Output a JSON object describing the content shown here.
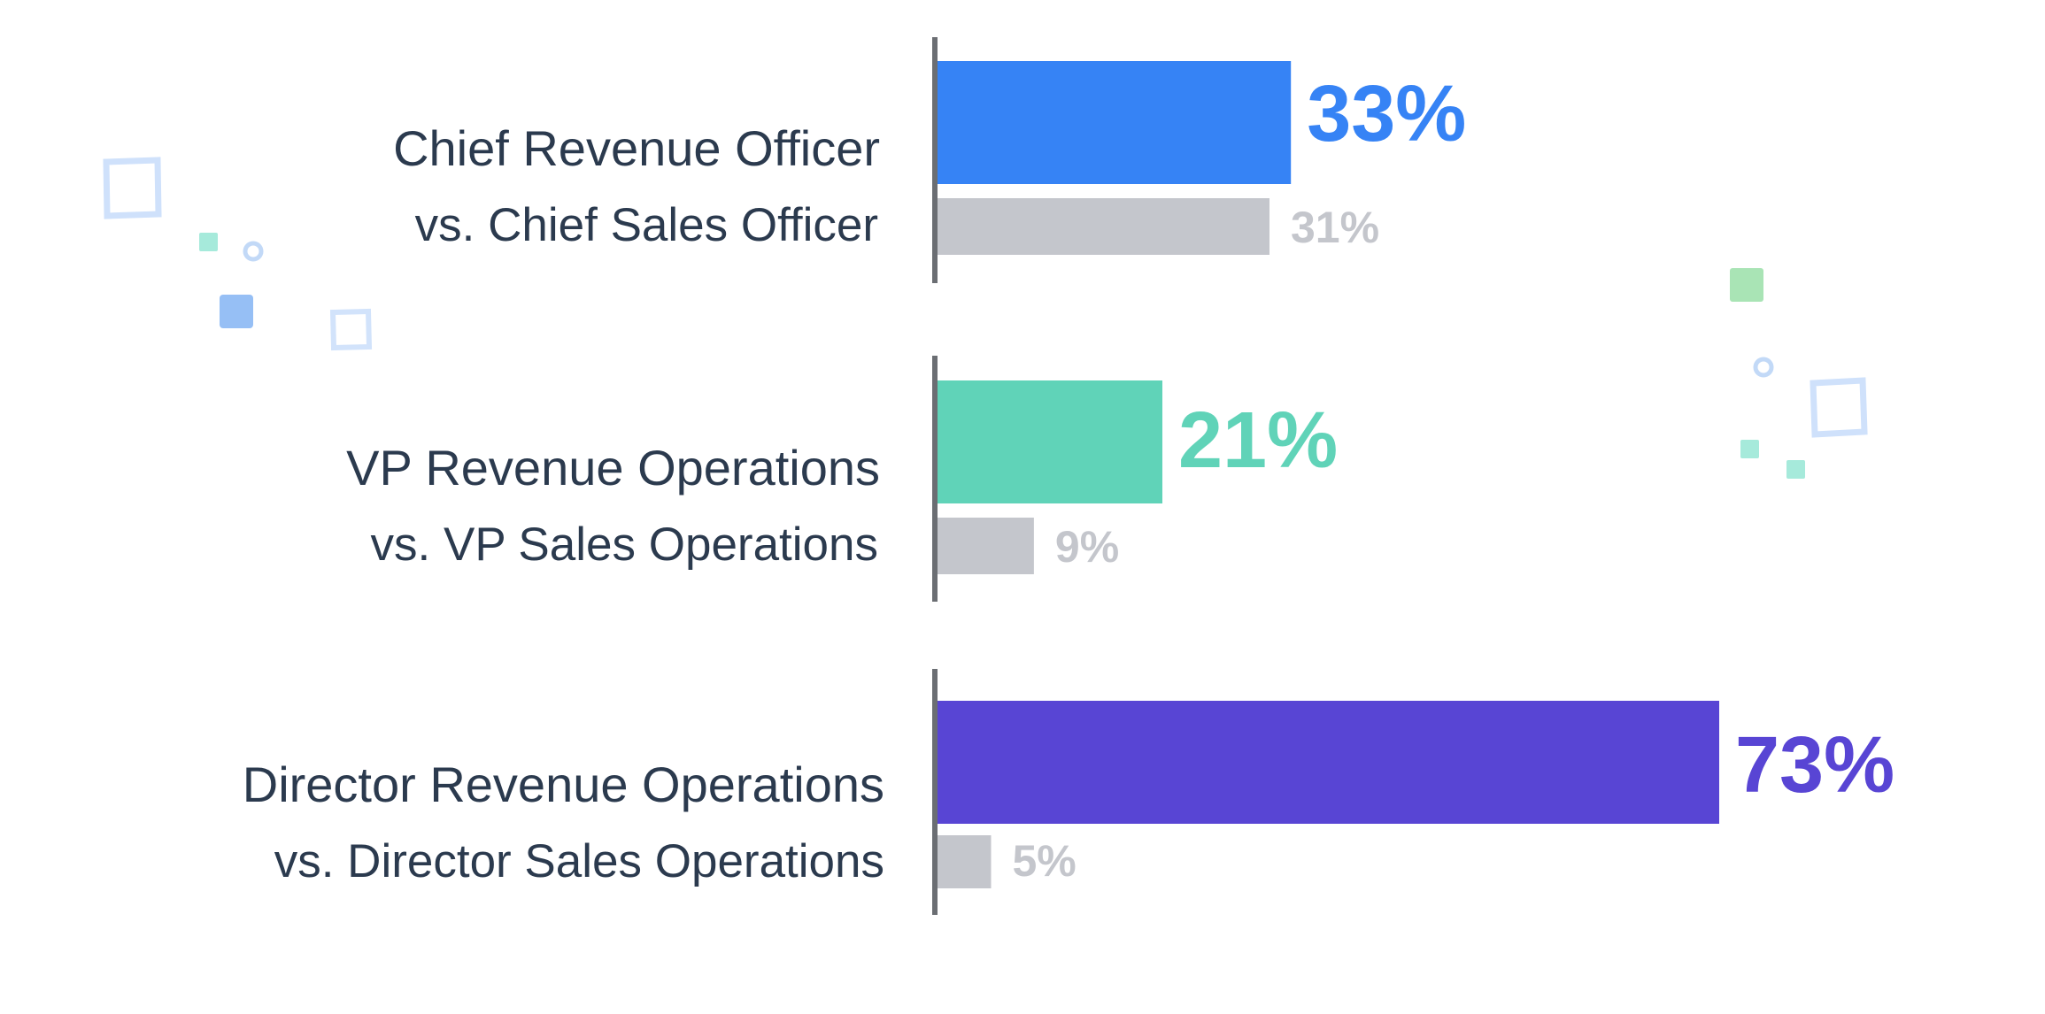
{
  "chart_data": {
    "type": "bar",
    "orientation": "horizontal",
    "xlim": [
      0,
      100
    ],
    "grid": false,
    "title": "",
    "xlabel": "",
    "ylabel": "",
    "comparison_color": "#c4c6cc",
    "groups": [
      {
        "primary_label": "Chief Revenue Officer",
        "secondary_label": "vs. Chief Sales Officer",
        "primary_value": 33,
        "secondary_value": 31,
        "primary_value_label": "33%",
        "secondary_value_label": "31%",
        "color": "#3683f5"
      },
      {
        "primary_label": "VP Revenue Operations",
        "secondary_label": "vs. VP Sales Operations",
        "primary_value": 21,
        "secondary_value": 9,
        "primary_value_label": "21%",
        "secondary_value_label": "9%",
        "color": "#60d3b8"
      },
      {
        "primary_label": "Director Revenue Operations",
        "secondary_label": "vs. Director Sales Operations",
        "primary_value": 73,
        "secondary_value": 5,
        "primary_value_label": "73%",
        "secondary_value_label": "5%",
        "color": "#5845d4"
      }
    ]
  }
}
